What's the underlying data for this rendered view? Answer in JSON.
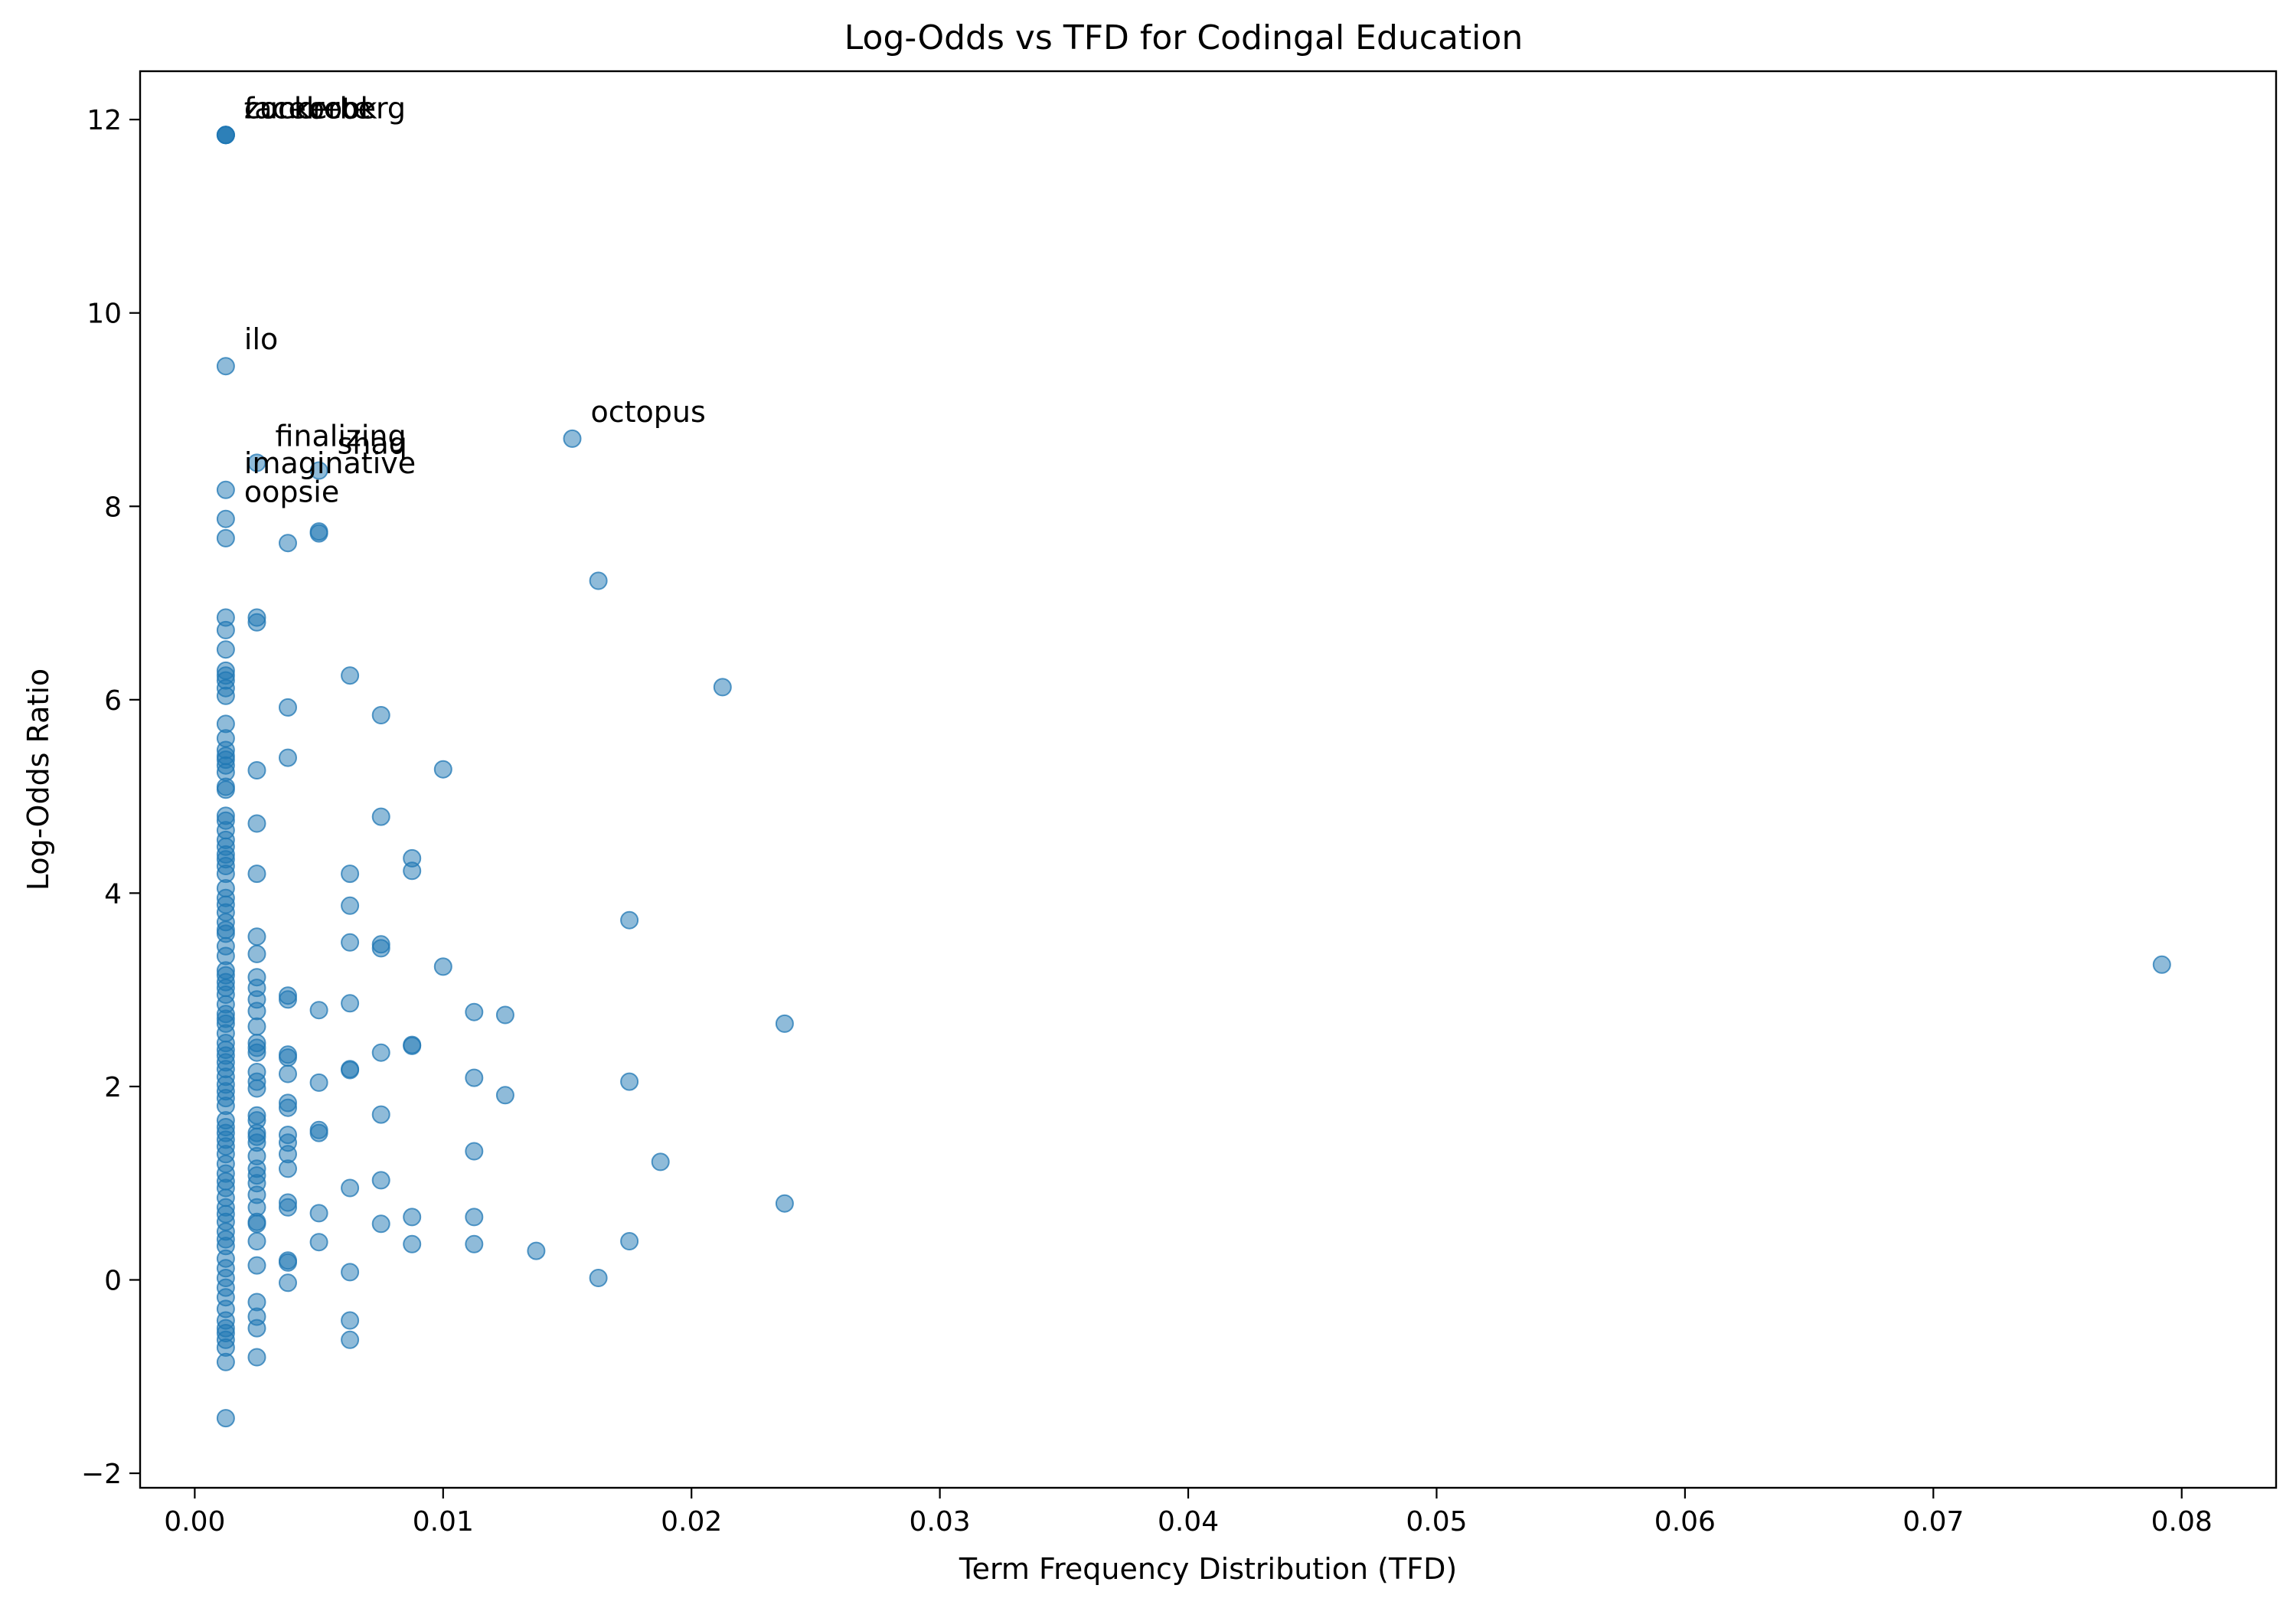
{
  "chart_data": {
    "type": "scatter",
    "title": "Log-Odds vs TFD for Codingal Education",
    "xlabel": "Term Frequency Distribution (TFD)",
    "ylabel": "Log-Odds Ratio",
    "xlim": [
      -0.0022,
      0.0838
    ],
    "ylim": [
      -2.15,
      12.5
    ],
    "xticks": [
      0.0,
      0.01,
      0.02,
      0.03,
      0.04,
      0.05,
      0.06,
      0.07,
      0.08
    ],
    "xtick_labels": [
      "0.00",
      "0.01",
      "0.02",
      "0.03",
      "0.04",
      "0.05",
      "0.06",
      "0.07",
      "0.08"
    ],
    "yticks": [
      -2,
      0,
      2,
      4,
      6,
      8,
      10,
      12
    ],
    "ytick_labels": [
      "−2",
      "0",
      "2",
      "4",
      "6",
      "8",
      "10",
      "12"
    ],
    "grid": false,
    "color": "#1f77b4",
    "annotations": [
      {
        "text": "facebook",
        "x": 0.00125,
        "y": 11.84
      },
      {
        "text": "zuckerberg",
        "x": 0.00125,
        "y": 11.84
      },
      {
        "text": "concrete",
        "x": 0.00125,
        "y": 11.84
      },
      {
        "text": "octopus",
        "x": 0.0152,
        "y": 8.7
      },
      {
        "text": "ilo",
        "x": 0.00125,
        "y": 9.45
      },
      {
        "text": "finalizing",
        "x": 0.0025,
        "y": 8.45
      },
      {
        "text": "shaq",
        "x": 0.005,
        "y": 8.37
      },
      {
        "text": "imaginative",
        "x": 0.00125,
        "y": 8.17
      },
      {
        "text": "oopsie",
        "x": 0.00125,
        "y": 7.87
      }
    ],
    "points": [
      [
        0.00125,
        11.84
      ],
      [
        0.00125,
        11.84
      ],
      [
        0.00125,
        11.84
      ],
      [
        0.00125,
        11.84
      ],
      [
        0.00125,
        9.45
      ],
      [
        0.00125,
        8.17
      ],
      [
        0.00125,
        7.87
      ],
      [
        0.00125,
        7.67
      ],
      [
        0.00125,
        6.85
      ],
      [
        0.00125,
        6.72
      ],
      [
        0.00125,
        6.52
      ],
      [
        0.00125,
        6.3
      ],
      [
        0.00125,
        6.25
      ],
      [
        0.00125,
        6.2
      ],
      [
        0.00125,
        6.12
      ],
      [
        0.00125,
        6.04
      ],
      [
        0.00125,
        5.75
      ],
      [
        0.00125,
        5.6
      ],
      [
        0.00125,
        5.48
      ],
      [
        0.00125,
        5.42
      ],
      [
        0.00125,
        5.38
      ],
      [
        0.00125,
        5.32
      ],
      [
        0.00125,
        5.25
      ],
      [
        0.00125,
        5.1
      ],
      [
        0.00125,
        5.07
      ],
      [
        0.00125,
        4.8
      ],
      [
        0.00125,
        4.75
      ],
      [
        0.00125,
        4.65
      ],
      [
        0.00125,
        4.55
      ],
      [
        0.00125,
        4.48
      ],
      [
        0.00125,
        4.4
      ],
      [
        0.00125,
        4.35
      ],
      [
        0.00125,
        4.28
      ],
      [
        0.00125,
        4.2
      ],
      [
        0.00125,
        4.05
      ],
      [
        0.00125,
        3.95
      ],
      [
        0.00125,
        3.88
      ],
      [
        0.00125,
        3.8
      ],
      [
        0.00125,
        3.7
      ],
      [
        0.00125,
        3.62
      ],
      [
        0.00125,
        3.58
      ],
      [
        0.00125,
        3.45
      ],
      [
        0.00125,
        3.35
      ],
      [
        0.00125,
        3.2
      ],
      [
        0.00125,
        3.15
      ],
      [
        0.00125,
        3.08
      ],
      [
        0.00125,
        3.02
      ],
      [
        0.00125,
        2.95
      ],
      [
        0.00125,
        2.85
      ],
      [
        0.00125,
        2.75
      ],
      [
        0.00125,
        2.7
      ],
      [
        0.00125,
        2.65
      ],
      [
        0.00125,
        2.55
      ],
      [
        0.00125,
        2.45
      ],
      [
        0.00125,
        2.38
      ],
      [
        0.00125,
        2.32
      ],
      [
        0.00125,
        2.25
      ],
      [
        0.00125,
        2.18
      ],
      [
        0.00125,
        2.1
      ],
      [
        0.00125,
        2.02
      ],
      [
        0.00125,
        1.95
      ],
      [
        0.00125,
        1.88
      ],
      [
        0.00125,
        1.8
      ],
      [
        0.00125,
        1.65
      ],
      [
        0.00125,
        1.58
      ],
      [
        0.00125,
        1.52
      ],
      [
        0.00125,
        1.45
      ],
      [
        0.00125,
        1.38
      ],
      [
        0.00125,
        1.3
      ],
      [
        0.00125,
        1.2
      ],
      [
        0.00125,
        1.1
      ],
      [
        0.00125,
        1.02
      ],
      [
        0.00125,
        0.95
      ],
      [
        0.00125,
        0.85
      ],
      [
        0.00125,
        0.75
      ],
      [
        0.00125,
        0.68
      ],
      [
        0.00125,
        0.6
      ],
      [
        0.00125,
        0.5
      ],
      [
        0.00125,
        0.42
      ],
      [
        0.00125,
        0.35
      ],
      [
        0.00125,
        0.22
      ],
      [
        0.00125,
        0.12
      ],
      [
        0.00125,
        0.02
      ],
      [
        0.00125,
        -0.08
      ],
      [
        0.00125,
        -0.18
      ],
      [
        0.00125,
        -0.3
      ],
      [
        0.00125,
        -0.42
      ],
      [
        0.00125,
        -0.5
      ],
      [
        0.00125,
        -0.55
      ],
      [
        0.00125,
        -0.62
      ],
      [
        0.00125,
        -0.7
      ],
      [
        0.00125,
        -0.85
      ],
      [
        0.00125,
        -1.43
      ],
      [
        0.0025,
        8.45
      ],
      [
        0.0025,
        6.85
      ],
      [
        0.0025,
        6.8
      ],
      [
        0.0025,
        5.27
      ],
      [
        0.0025,
        4.72
      ],
      [
        0.0025,
        4.2
      ],
      [
        0.0025,
        3.55
      ],
      [
        0.0025,
        3.37
      ],
      [
        0.0025,
        3.13
      ],
      [
        0.0025,
        3.02
      ],
      [
        0.0025,
        2.9
      ],
      [
        0.0025,
        2.78
      ],
      [
        0.0025,
        2.62
      ],
      [
        0.0025,
        2.45
      ],
      [
        0.0025,
        2.4
      ],
      [
        0.0025,
        2.35
      ],
      [
        0.0025,
        2.15
      ],
      [
        0.0025,
        2.05
      ],
      [
        0.0025,
        1.98
      ],
      [
        0.0025,
        1.7
      ],
      [
        0.0025,
        1.65
      ],
      [
        0.0025,
        1.52
      ],
      [
        0.0025,
        1.48
      ],
      [
        0.0025,
        1.42
      ],
      [
        0.0025,
        1.28
      ],
      [
        0.0025,
        1.15
      ],
      [
        0.0025,
        1.08
      ],
      [
        0.0025,
        1.0
      ],
      [
        0.0025,
        0.88
      ],
      [
        0.0025,
        0.75
      ],
      [
        0.0025,
        0.6
      ],
      [
        0.0025,
        0.58
      ],
      [
        0.0025,
        0.4
      ],
      [
        0.0025,
        0.15
      ],
      [
        0.0025,
        -0.23
      ],
      [
        0.0025,
        -0.38
      ],
      [
        0.0025,
        -0.5
      ],
      [
        0.0025,
        -0.8
      ],
      [
        0.00375,
        7.62
      ],
      [
        0.00375,
        5.92
      ],
      [
        0.00375,
        5.4
      ],
      [
        0.00375,
        2.94
      ],
      [
        0.00375,
        2.9
      ],
      [
        0.00375,
        2.33
      ],
      [
        0.00375,
        2.3
      ],
      [
        0.00375,
        2.13
      ],
      [
        0.00375,
        1.83
      ],
      [
        0.00375,
        1.78
      ],
      [
        0.00375,
        1.5
      ],
      [
        0.00375,
        1.42
      ],
      [
        0.00375,
        1.3
      ],
      [
        0.00375,
        1.15
      ],
      [
        0.00375,
        0.8
      ],
      [
        0.00375,
        0.75
      ],
      [
        0.00375,
        0.2
      ],
      [
        0.00375,
        0.18
      ],
      [
        0.00375,
        -0.03
      ],
      [
        0.005,
        8.37
      ],
      [
        0.005,
        7.74
      ],
      [
        0.005,
        7.72
      ],
      [
        0.005,
        2.79
      ],
      [
        0.005,
        2.04
      ],
      [
        0.005,
        1.55
      ],
      [
        0.005,
        1.52
      ],
      [
        0.005,
        0.69
      ],
      [
        0.005,
        0.39
      ],
      [
        0.00625,
        6.25
      ],
      [
        0.00625,
        4.2
      ],
      [
        0.00625,
        3.87
      ],
      [
        0.00625,
        3.49
      ],
      [
        0.00625,
        2.86
      ],
      [
        0.00625,
        2.18
      ],
      [
        0.00625,
        2.17
      ],
      [
        0.00625,
        0.95
      ],
      [
        0.00625,
        0.08
      ],
      [
        0.00625,
        -0.42
      ],
      [
        0.00625,
        -0.62
      ],
      [
        0.0075,
        5.84
      ],
      [
        0.0075,
        4.79
      ],
      [
        0.0075,
        3.47
      ],
      [
        0.0075,
        3.43
      ],
      [
        0.0075,
        2.35
      ],
      [
        0.0075,
        1.71
      ],
      [
        0.0075,
        1.03
      ],
      [
        0.0075,
        0.58
      ],
      [
        0.00875,
        4.36
      ],
      [
        0.00875,
        4.23
      ],
      [
        0.00875,
        2.43
      ],
      [
        0.00875,
        2.42
      ],
      [
        0.00875,
        0.65
      ],
      [
        0.00875,
        0.37
      ],
      [
        0.01,
        5.28
      ],
      [
        0.01,
        3.24
      ],
      [
        0.01125,
        2.77
      ],
      [
        0.01125,
        2.09
      ],
      [
        0.01125,
        1.33
      ],
      [
        0.01125,
        0.65
      ],
      [
        0.01125,
        0.37
      ],
      [
        0.0125,
        2.74
      ],
      [
        0.0125,
        1.91
      ],
      [
        0.01375,
        0.3
      ],
      [
        0.0152,
        8.7
      ],
      [
        0.01625,
        7.23
      ],
      [
        0.01625,
        0.02
      ],
      [
        0.0175,
        3.72
      ],
      [
        0.0175,
        2.05
      ],
      [
        0.0175,
        0.4
      ],
      [
        0.01875,
        1.22
      ],
      [
        0.02125,
        6.13
      ],
      [
        0.02375,
        2.65
      ],
      [
        0.02375,
        0.79
      ],
      [
        0.0792,
        3.26
      ]
    ]
  }
}
